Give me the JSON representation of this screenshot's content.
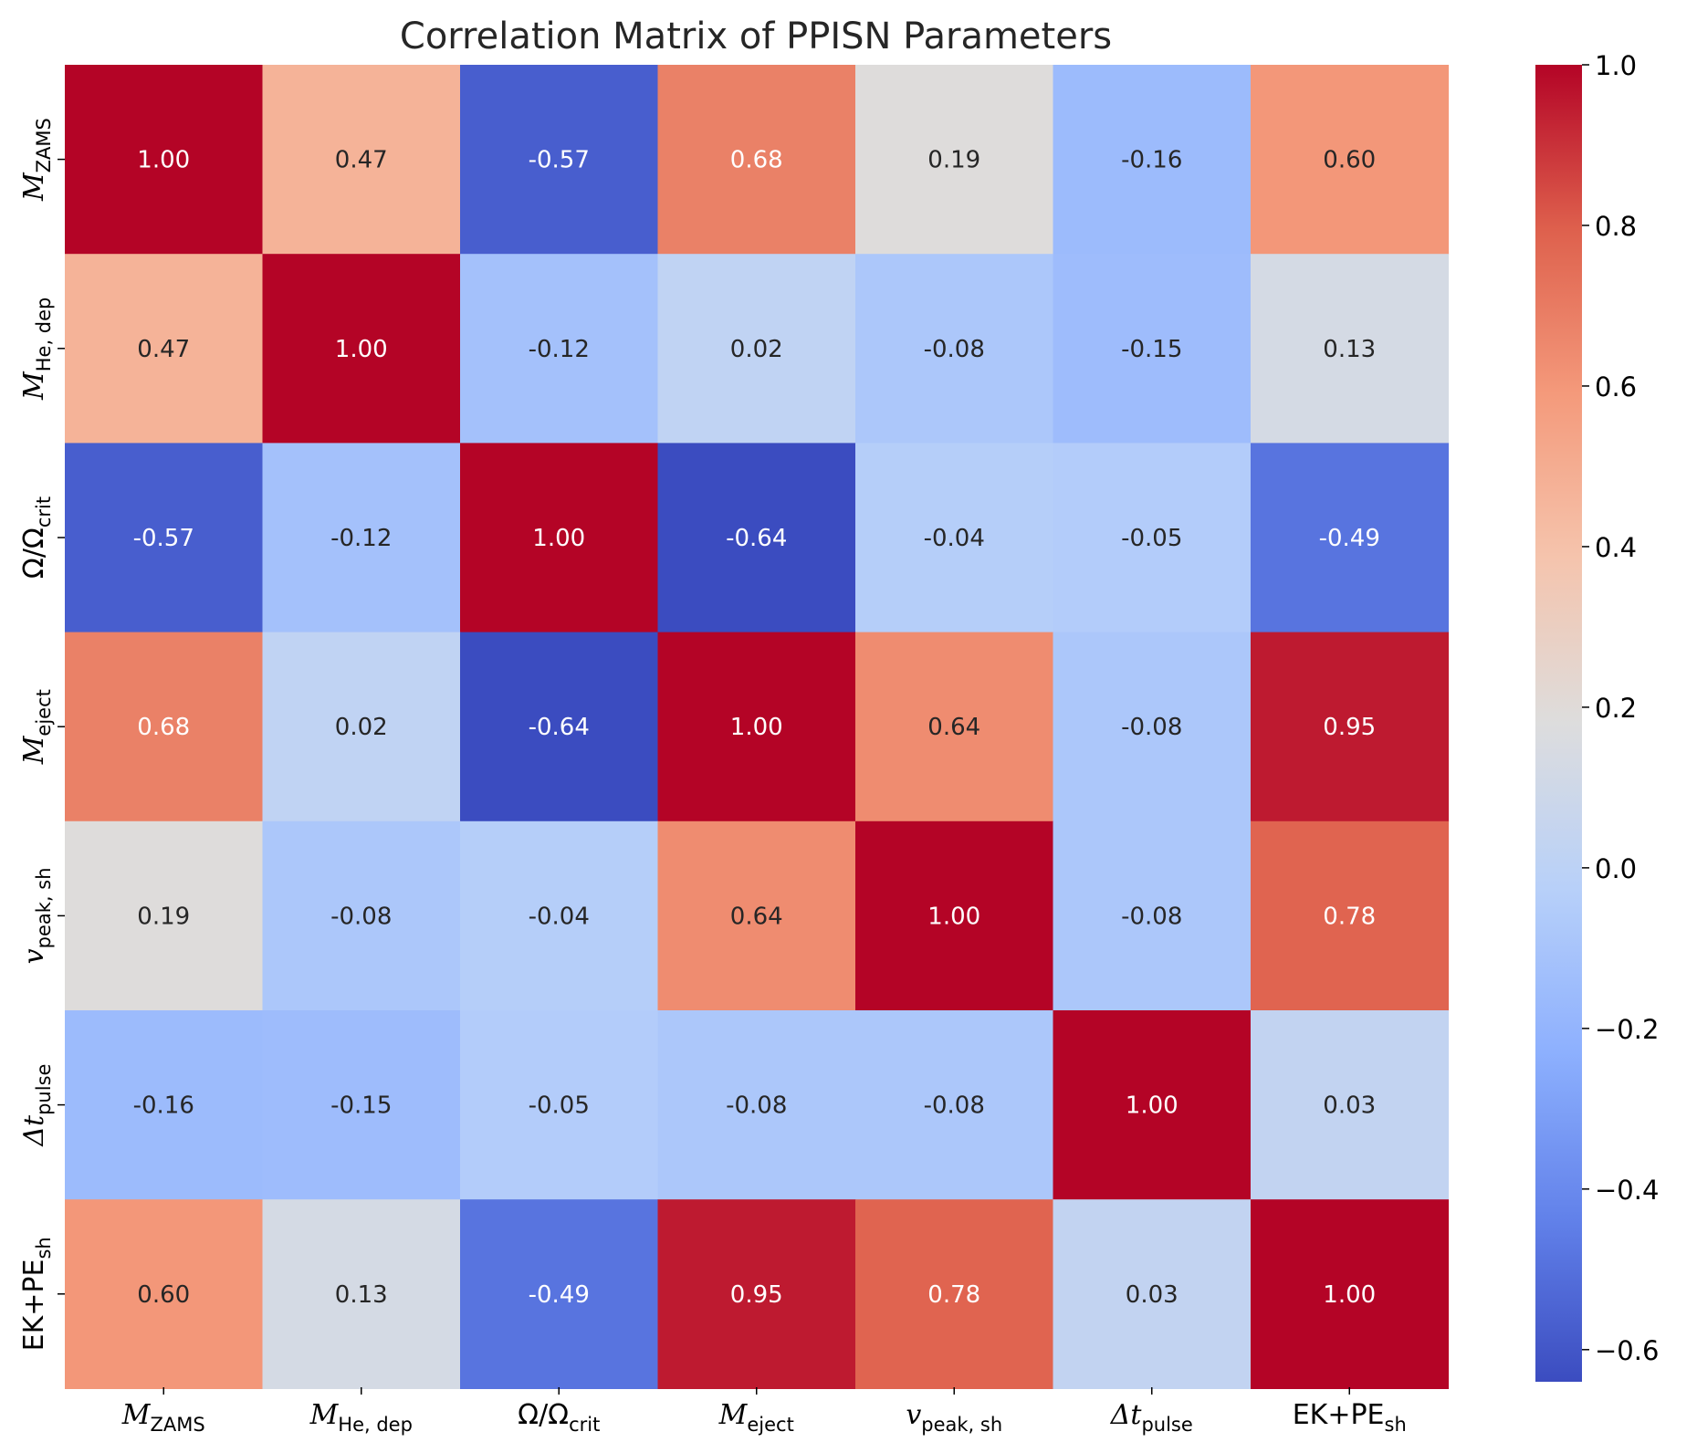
{
  "chart_data": {
    "type": "heatmap",
    "title": "Correlation Matrix of PPISN Parameters",
    "labels": [
      {
        "main": "M",
        "sub": "ZAMS",
        "italic": true
      },
      {
        "main": "M",
        "sub": "He, dep",
        "italic": true
      },
      {
        "main": "Ω/Ω",
        "sub": "crit",
        "italic": false
      },
      {
        "main": "M",
        "sub": "eject",
        "italic": true
      },
      {
        "main": "v",
        "sub": "peak, sh",
        "italic": true
      },
      {
        "main": "Δt",
        "sub": "pulse",
        "italic": true
      },
      {
        "main": "EK+PE",
        "sub": "sh",
        "italic": false
      }
    ],
    "matrix": [
      [
        1.0,
        0.47,
        -0.57,
        0.68,
        0.19,
        -0.16,
        0.6
      ],
      [
        0.47,
        1.0,
        -0.12,
        0.02,
        -0.08,
        -0.15,
        0.13
      ],
      [
        -0.57,
        -0.12,
        1.0,
        -0.64,
        -0.04,
        -0.05,
        -0.49
      ],
      [
        0.68,
        0.02,
        -0.64,
        1.0,
        0.64,
        -0.08,
        0.95
      ],
      [
        0.19,
        -0.08,
        -0.04,
        0.64,
        1.0,
        -0.08,
        0.78
      ],
      [
        -0.16,
        -0.15,
        -0.05,
        -0.08,
        -0.08,
        1.0,
        0.03
      ],
      [
        0.6,
        0.13,
        -0.49,
        0.95,
        0.78,
        0.03,
        1.0
      ]
    ],
    "value_format": "2 decimals",
    "colormap": "coolwarm",
    "colorbar": {
      "vmin": -0.64,
      "vmax": 1.0,
      "ticks": [
        1.0,
        0.8,
        0.6,
        0.4,
        0.2,
        0.0,
        -0.2,
        -0.4,
        -0.6
      ],
      "tick_labels": [
        "1.0",
        "0.8",
        "0.6",
        "0.4",
        "0.2",
        "0.0",
        "−0.2",
        "−0.4",
        "−0.6"
      ]
    }
  }
}
